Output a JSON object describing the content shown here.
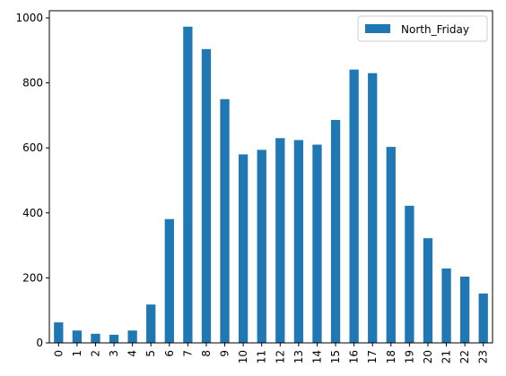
{
  "chart_data": {
    "type": "bar",
    "categories": [
      "0",
      "1",
      "2",
      "3",
      "4",
      "5",
      "6",
      "7",
      "8",
      "9",
      "10",
      "11",
      "12",
      "13",
      "14",
      "15",
      "16",
      "17",
      "18",
      "19",
      "20",
      "21",
      "22",
      "23"
    ],
    "series": [
      {
        "name": "North_Friday",
        "color": "#1f77b4",
        "values": [
          63,
          38,
          28,
          25,
          38,
          118,
          381,
          973,
          904,
          750,
          580,
          594,
          630,
          624,
          610,
          686,
          841,
          830,
          603,
          422,
          322,
          229,
          204,
          152
        ]
      }
    ],
    "title": "",
    "xlabel": "",
    "ylabel": "",
    "ylim": [
      0,
      1022
    ],
    "yticks": [
      0,
      200,
      400,
      600,
      800,
      1000
    ],
    "grid": false,
    "legend_position": "top-right"
  }
}
